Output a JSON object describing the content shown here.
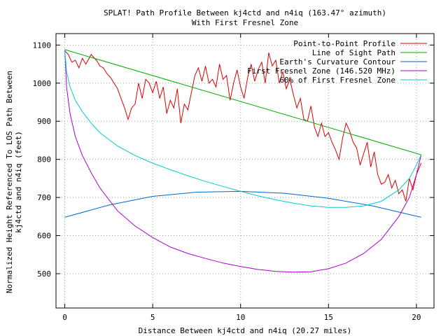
{
  "chart_data": {
    "type": "line",
    "title": "SPLAT! Path Profile Between kj4ctd and n4iq (163.47° azimuth)",
    "subtitle": "With First Fresnel Zone",
    "xlabel": "Distance Between kj4ctd and n4iq (20.27 miles)",
    "ylabel": "Normalized Height Referenced To LOS Path Between",
    "ylabel2": "kj4ctd and n4iq (feet)",
    "xlim": [
      -0.5,
      21
    ],
    "ylim": [
      410,
      1130
    ],
    "x_ticks": [
      0,
      5,
      10,
      15,
      20
    ],
    "y_ticks": [
      500,
      600,
      700,
      800,
      900,
      1000,
      1100
    ],
    "x_tick_labels": [
      "0",
      "5",
      "10",
      "15",
      "20"
    ],
    "y_tick_labels": [
      "500",
      "600",
      "700",
      "800",
      "900",
      "1000",
      "1100"
    ],
    "grid": true,
    "legend_position": "top-right",
    "series": [
      {
        "name": "Point-to-Point Profile",
        "color": "#dd0000",
        "x": [
          0,
          0.2,
          0.4,
          0.6,
          0.8,
          1.0,
          1.2,
          1.5,
          1.8,
          2.0,
          2.2,
          2.4,
          2.6,
          2.8,
          3.0,
          3.2,
          3.4,
          3.6,
          3.8,
          4.0,
          4.2,
          4.4,
          4.6,
          4.8,
          5.0,
          5.2,
          5.4,
          5.6,
          5.8,
          6.0,
          6.2,
          6.4,
          6.6,
          6.8,
          7.0,
          7.2,
          7.4,
          7.6,
          7.8,
          8.0,
          8.2,
          8.4,
          8.6,
          8.8,
          9.0,
          9.2,
          9.4,
          9.6,
          9.8,
          10.0,
          10.2,
          10.4,
          10.6,
          10.8,
          11.0,
          11.2,
          11.4,
          11.6,
          11.8,
          12.0,
          12.2,
          12.4,
          12.6,
          12.8,
          13.0,
          13.2,
          13.4,
          13.6,
          13.8,
          14.0,
          14.2,
          14.4,
          14.6,
          14.8,
          15.0,
          15.2,
          15.4,
          15.6,
          15.8,
          16.0,
          16.2,
          16.4,
          16.6,
          16.8,
          17.0,
          17.2,
          17.4,
          17.6,
          17.8,
          18.0,
          18.2,
          18.4,
          18.6,
          18.8,
          19.0,
          19.2,
          19.4,
          19.6,
          19.8,
          20.0,
          20.27
        ],
        "y": [
          1085,
          1075,
          1055,
          1060,
          1040,
          1065,
          1050,
          1075,
          1060,
          1045,
          1040,
          1025,
          1015,
          1000,
          985,
          960,
          935,
          905,
          935,
          945,
          1000,
          960,
          1010,
          1000,
          975,
          1005,
          960,
          990,
          920,
          955,
          935,
          985,
          895,
          945,
          930,
          975,
          1020,
          1040,
          1005,
          1045,
          1000,
          1010,
          990,
          1050,
          1010,
          1020,
          955,
          1000,
          1035,
          990,
          960,
          1015,
          1050,
          1005,
          1035,
          1055,
          1000,
          1080,
          1045,
          1060,
          1000,
          1030,
          985,
          1010,
          970,
          935,
          960,
          905,
          900,
          940,
          885,
          860,
          895,
          860,
          870,
          845,
          825,
          800,
          855,
          895,
          875,
          845,
          830,
          785,
          815,
          845,
          780,
          820,
          760,
          735,
          740,
          760,
          725,
          745,
          710,
          720,
          690,
          750,
          720,
          760,
          790
        ]
      },
      {
        "name": "Line of Sight Path",
        "color": "#00aa00",
        "x": [
          0,
          20.27
        ],
        "y": [
          1088,
          812
        ]
      },
      {
        "name": "Earth's Curvature Contour",
        "color": "#0066cc",
        "x": [
          0,
          2.5,
          5,
          7.5,
          10,
          12.5,
          15,
          17.5,
          20.27
        ],
        "y": [
          648,
          680,
          703,
          714,
          716,
          711,
          698,
          678,
          648
        ]
      },
      {
        "name": "First Fresnel Zone (146.520 MHz)",
        "color": "#aa00cc",
        "x": [
          0,
          0.1,
          0.3,
          0.6,
          1,
          1.5,
          2,
          3,
          4,
          5,
          6,
          7,
          8,
          9,
          10,
          11,
          12,
          13,
          14,
          15,
          16,
          17,
          18,
          19,
          19.6,
          20,
          20.27
        ],
        "y": [
          1088,
          990,
          920,
          860,
          810,
          765,
          725,
          665,
          625,
          595,
          570,
          553,
          540,
          528,
          519,
          511,
          506,
          504,
          505,
          513,
          528,
          553,
          590,
          650,
          700,
          760,
          812
        ]
      },
      {
        "name": "60% of First Fresnel Zone",
        "color": "#00cccc",
        "x": [
          0,
          0.1,
          0.3,
          0.6,
          1,
          1.5,
          2,
          3,
          4,
          5,
          6,
          7,
          8,
          9,
          10,
          11,
          12,
          13,
          14,
          15,
          16,
          17,
          18,
          19,
          19.6,
          20,
          20.27
        ],
        "y": [
          1088,
          1030,
          990,
          955,
          925,
          895,
          870,
          835,
          810,
          790,
          773,
          757,
          742,
          729,
          716,
          704,
          694,
          685,
          678,
          674,
          674,
          678,
          690,
          720,
          750,
          785,
          812
        ]
      }
    ]
  }
}
